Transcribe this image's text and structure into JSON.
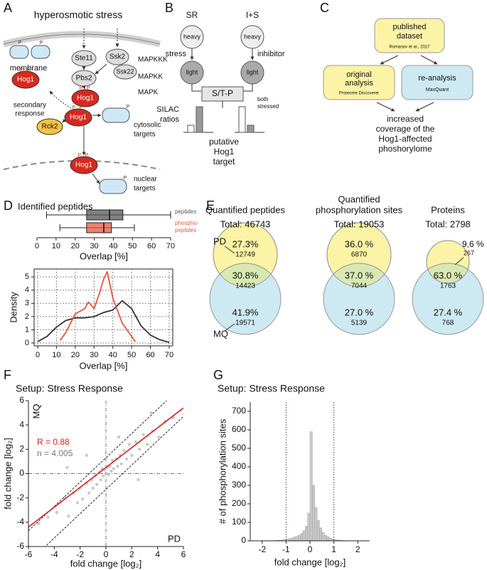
{
  "panels": {
    "letters": [
      "A",
      "B",
      "C",
      "D",
      "E",
      "F",
      "G"
    ],
    "A": {
      "title": "hyperosmotic stress",
      "membrane": "membrane",
      "ste11": "Ste11",
      "ssk2": "Ssk2",
      "ssk22": "Ssk22",
      "pbs2": "Pbs2",
      "mapkkk": "MAPKKK",
      "mapkk": "MAPKK",
      "mapk": "MAPK",
      "hog1": "Hog1",
      "p": "P",
      "secondary": [
        "secondary",
        "response"
      ],
      "rck2": "Rck2",
      "cytosolic": [
        "cytosolic",
        "targets"
      ],
      "nuclear": [
        "nuclear",
        "targets"
      ]
    },
    "B": {
      "sr": "SR",
      "is": "I+S",
      "heavy": "heavy",
      "light": "light",
      "stress": "stress",
      "inhibitor": "inhibitor",
      "motif": "S/T-P",
      "both": [
        "both",
        "stressed"
      ],
      "silac": [
        "SILAC",
        "ratios"
      ],
      "target": [
        "putative",
        "Hog1",
        "target"
      ]
    },
    "C": {
      "published": [
        "published",
        "dataset"
      ],
      "ref": "Romanov et al., 2017",
      "original": [
        "original",
        "analysis"
      ],
      "pd": "Proteome Discoverer",
      "reanalysis": "re-analysis",
      "mq": "MaxQuant",
      "result": [
        "increased",
        "coverage of the",
        "Hog1-affected",
        "phoshorylome"
      ]
    },
    "E": {
      "pd": "PD",
      "mq": "MQ",
      "venns": [
        {
          "title": [
            "Quantified peptides"
          ],
          "total": "Total: 46743",
          "pd_only": [
            "27.3%",
            "12749"
          ],
          "both": [
            "30.8%",
            "14423"
          ],
          "mq_only": [
            "41.9%",
            "19571"
          ]
        },
        {
          "title": [
            "Quantified",
            "phosphorylation sites"
          ],
          "total": "Total: 19053",
          "pd_only": [
            "36.0 %",
            "6870"
          ],
          "both": [
            "37.0 %",
            "7044"
          ],
          "mq_only": [
            "27.0 %",
            "5139"
          ]
        },
        {
          "title": [
            "Proteins"
          ],
          "total": "Total: 2798",
          "pd_only": [
            "9,6 %",
            "267"
          ],
          "both": [
            "63.0 %",
            "1763"
          ],
          "mq_only": [
            "27.4 %",
            "768"
          ]
        }
      ]
    }
  },
  "chart_data": [
    {
      "type": "box",
      "title": "Identified peptides",
      "xlabel": "Overlap [%]",
      "xlim": [
        0,
        70
      ],
      "xticks": [
        0,
        10,
        20,
        30,
        40,
        50,
        60,
        70
      ],
      "series": [
        {
          "name": [
            "peptides"
          ],
          "color": "#555555",
          "whislo": 5,
          "q1": 26,
          "median": 38,
          "q3": 45,
          "whishi": 70
        },
        {
          "name": [
            "phospho-",
            "peptides"
          ],
          "color": "#e8553e",
          "whislo": 12,
          "q1": 26,
          "median": 35,
          "q3": 39,
          "whishi": 51
        }
      ]
    },
    {
      "type": "line",
      "xlabel": "Overlap [%]",
      "ylabel": "Density",
      "xlim": [
        0,
        70
      ],
      "ylim": [
        0,
        5.6
      ],
      "xticks": [
        0,
        10,
        20,
        30,
        40,
        50,
        60,
        70
      ],
      "yticks": [
        0,
        1,
        2,
        3,
        4,
        5
      ],
      "grid": true,
      "series": [
        {
          "color": "#333333",
          "x": [
            0,
            5,
            10,
            15,
            20,
            25,
            30,
            35,
            40,
            45,
            50,
            55,
            60,
            65,
            70
          ],
          "values": [
            0.1,
            0.5,
            1.2,
            1.7,
            1.9,
            1.9,
            2.0,
            2.3,
            2.5,
            3.2,
            2.6,
            1.3,
            0.6,
            0.25,
            0.05
          ]
        },
        {
          "color": "#e8553e",
          "x": [
            12,
            15,
            20,
            25,
            27,
            30,
            33,
            35,
            37,
            40,
            45,
            50,
            52
          ],
          "values": [
            0.2,
            0.8,
            2.2,
            2.6,
            3.1,
            2.6,
            3.8,
            4.8,
            5.4,
            3.4,
            1.5,
            0.5,
            0.1
          ]
        }
      ]
    },
    {
      "type": "scatter",
      "title": "Setup: Stress Response",
      "xlabel": "fold change [log₂]",
      "ylabel": "fold change [log₂]",
      "xname": "PD",
      "yname": "MQ",
      "annotations": [
        {
          "text": "R = 0.88",
          "color": "#d62020"
        },
        {
          "text": "n = 4.005",
          "color": "#777777"
        }
      ],
      "xlim": [
        -6,
        6
      ],
      "ylim": [
        -6,
        6
      ],
      "xticks": [
        -6,
        -4,
        -2,
        0,
        2,
        4,
        6
      ],
      "yticks": [
        -6,
        -4,
        -2,
        0,
        2,
        4,
        6
      ],
      "color": "#bdbdbd",
      "x": [
        -4.5,
        -3.8,
        -3.2,
        -2.9,
        -2.5,
        -2.2,
        -2,
        -1.8,
        -1.5,
        -1.3,
        -1.1,
        -1,
        -0.8,
        -0.7,
        -0.5,
        -0.4,
        -0.3,
        -0.2,
        -0.1,
        0,
        0.1,
        0.2,
        0.3,
        0.4,
        0.5,
        0.6,
        0.8,
        0.9,
        1.1,
        1.2,
        1.4,
        1.6,
        1.8,
        2.0,
        2.3,
        2.6,
        2.9,
        3.2,
        3.6,
        4.1,
        4.6,
        5.2,
        -5.2,
        1.0,
        -1.5,
        2.5,
        -3,
        3.5
      ],
      "y": [
        -3.6,
        -3.2,
        -2.0,
        -3.5,
        -1.6,
        -2.4,
        -1.2,
        -2.1,
        -0.8,
        -1.6,
        -0.5,
        -1.2,
        -0.2,
        -0.9,
        0.1,
        -0.5,
        0.4,
        -0.2,
        0.3,
        0,
        0.5,
        -0.1,
        0.6,
        0.2,
        1.1,
        0.4,
        1.2,
        0.6,
        1.5,
        0.8,
        1.9,
        1.2,
        2.4,
        1.5,
        2.6,
        2.0,
        3.2,
        2.4,
        3.5,
        3.0,
        4.3,
        4.6,
        -4.1,
        3.0,
        1.5,
        -0.5,
        0.5,
        5.0
      ],
      "fit": {
        "x": [
          -6,
          6
        ],
        "y": [
          -4.4,
          5.4
        ],
        "color": "#d62020"
      },
      "band_offsets": [
        1.3,
        -1.3
      ]
    },
    {
      "type": "histogram",
      "title": "Setup: Stress Response",
      "xlabel": "fold change [log₂]",
      "ylabel": "# of phosphorylation sites",
      "xlim": [
        -2.5,
        2.5
      ],
      "xticks": [
        -2,
        -1,
        0,
        1,
        2
      ],
      "ylim": [
        0,
        750
      ],
      "yticks": [
        0,
        100,
        200,
        300,
        400,
        500,
        600,
        700
      ],
      "color": "#c8c8c8",
      "thresholds": [
        -1,
        1
      ],
      "bins": [
        -1.5,
        -1.4,
        -1.3,
        -1.2,
        -1.1,
        -1.0,
        -0.9,
        -0.8,
        -0.7,
        -0.6,
        -0.5,
        -0.4,
        -0.3,
        -0.2,
        -0.1,
        0,
        0.1,
        0.2,
        0.3,
        0.4,
        0.5,
        0.6,
        0.7,
        0.8,
        0.9,
        1.0,
        1.1,
        1.2,
        1.3,
        1.4,
        1.5
      ],
      "counts": [
        2,
        3,
        4,
        5,
        8,
        10,
        12,
        15,
        20,
        25,
        30,
        40,
        55,
        80,
        150,
        590,
        300,
        180,
        110,
        70,
        45,
        30,
        22,
        15,
        10,
        8,
        5,
        4,
        3,
        2
      ]
    }
  ]
}
